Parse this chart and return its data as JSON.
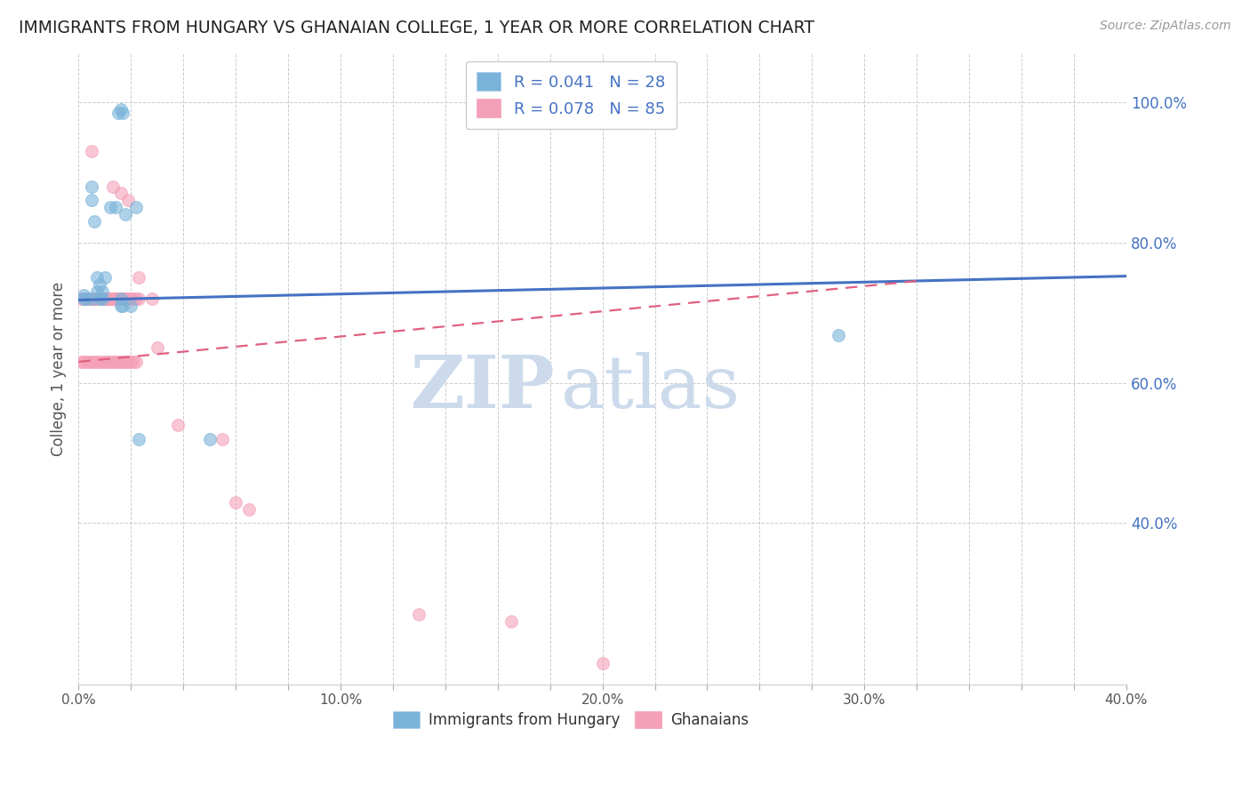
{
  "title": "IMMIGRANTS FROM HUNGARY VS GHANAIAN COLLEGE, 1 YEAR OR MORE CORRELATION CHART",
  "source": "Source: ZipAtlas.com",
  "ylabel": "College, 1 year or more",
  "x_tick_labels": [
    "0.0%",
    "",
    "",
    "",
    "",
    "10.0%",
    "",
    "",
    "",
    "",
    "20.0%",
    "",
    "",
    "",
    "",
    "30.0%",
    "",
    "",
    "",
    "",
    "40.0%"
  ],
  "x_tick_values": [
    0.0,
    0.02,
    0.04,
    0.06,
    0.08,
    0.1,
    0.12,
    0.14,
    0.16,
    0.18,
    0.2,
    0.22,
    0.24,
    0.26,
    0.28,
    0.3,
    0.32,
    0.34,
    0.36,
    0.38,
    0.4
  ],
  "y_tick_labels_right": [
    "100.0%",
    "80.0%",
    "60.0%",
    "40.0%"
  ],
  "y_tick_values": [
    1.0,
    0.8,
    0.6,
    0.4
  ],
  "xlim": [
    0.0,
    0.4
  ],
  "ylim": [
    0.17,
    1.07
  ],
  "legend_entries": [
    {
      "label": "R = 0.041   N = 28",
      "color": "#a8c8e8"
    },
    {
      "label": "R = 0.078   N = 85",
      "color": "#f4b0c4"
    }
  ],
  "legend_bottom": [
    {
      "label": "Immigrants from Hungary",
      "color": "#a8c8e8"
    },
    {
      "label": "Ghanaians",
      "color": "#f4b0c4"
    }
  ],
  "blue_scatter_x": [
    0.002,
    0.015,
    0.016,
    0.017,
    0.005,
    0.005,
    0.006,
    0.007,
    0.007,
    0.008,
    0.008,
    0.009,
    0.009,
    0.01,
    0.012,
    0.014,
    0.016,
    0.016,
    0.017,
    0.018,
    0.02,
    0.022,
    0.29,
    0.023,
    0.002,
    0.003,
    0.005,
    0.05
  ],
  "blue_scatter_y": [
    0.725,
    0.985,
    0.99,
    0.985,
    0.88,
    0.86,
    0.83,
    0.73,
    0.75,
    0.72,
    0.74,
    0.73,
    0.72,
    0.75,
    0.85,
    0.85,
    0.71,
    0.72,
    0.71,
    0.84,
    0.71,
    0.85,
    0.668,
    0.52,
    0.72,
    0.72,
    0.72,
    0.52
  ],
  "pink_scatter_x": [
    0.001,
    0.002,
    0.003,
    0.003,
    0.004,
    0.004,
    0.004,
    0.005,
    0.005,
    0.006,
    0.006,
    0.006,
    0.007,
    0.007,
    0.007,
    0.008,
    0.008,
    0.008,
    0.009,
    0.009,
    0.009,
    0.01,
    0.01,
    0.01,
    0.01,
    0.011,
    0.011,
    0.012,
    0.012,
    0.012,
    0.013,
    0.013,
    0.014,
    0.014,
    0.015,
    0.015,
    0.016,
    0.016,
    0.017,
    0.017,
    0.018,
    0.018,
    0.019,
    0.019,
    0.02,
    0.02,
    0.021,
    0.022,
    0.023,
    0.001,
    0.002,
    0.003,
    0.004,
    0.005,
    0.006,
    0.007,
    0.008,
    0.009,
    0.01,
    0.011,
    0.012,
    0.013,
    0.014,
    0.015,
    0.016,
    0.017,
    0.018,
    0.019,
    0.02,
    0.021,
    0.022,
    0.005,
    0.013,
    0.016,
    0.019,
    0.023,
    0.028,
    0.03,
    0.038,
    0.055,
    0.06,
    0.065,
    0.13,
    0.165,
    0.2
  ],
  "pink_scatter_y": [
    0.72,
    0.72,
    0.72,
    0.72,
    0.72,
    0.72,
    0.72,
    0.72,
    0.72,
    0.72,
    0.72,
    0.72,
    0.72,
    0.72,
    0.72,
    0.72,
    0.72,
    0.72,
    0.72,
    0.72,
    0.72,
    0.72,
    0.72,
    0.72,
    0.72,
    0.72,
    0.72,
    0.72,
    0.72,
    0.72,
    0.72,
    0.72,
    0.72,
    0.72,
    0.72,
    0.72,
    0.72,
    0.72,
    0.72,
    0.72,
    0.72,
    0.72,
    0.72,
    0.72,
    0.72,
    0.72,
    0.72,
    0.72,
    0.72,
    0.63,
    0.63,
    0.63,
    0.63,
    0.63,
    0.63,
    0.63,
    0.63,
    0.63,
    0.63,
    0.63,
    0.63,
    0.63,
    0.63,
    0.63,
    0.63,
    0.63,
    0.63,
    0.63,
    0.63,
    0.63,
    0.63,
    0.93,
    0.88,
    0.87,
    0.86,
    0.75,
    0.72,
    0.65,
    0.54,
    0.52,
    0.43,
    0.42,
    0.27,
    0.26,
    0.2
  ],
  "blue_line_x": [
    0.0,
    0.4
  ],
  "blue_line_y": [
    0.718,
    0.752
  ],
  "pink_line_x": [
    0.0,
    0.32
  ],
  "pink_line_y": [
    0.63,
    0.745
  ],
  "blue_scatter_color": "#7ab3d9",
  "pink_scatter_color": "#f4a0b8",
  "blue_line_color": "#4472c4",
  "pink_line_color": "#e06080",
  "watermark_zip": "ZIP",
  "watermark_atlas": "atlas",
  "watermark_color": "#ccdaec",
  "background_color": "#ffffff",
  "grid_color": "#cccccc"
}
